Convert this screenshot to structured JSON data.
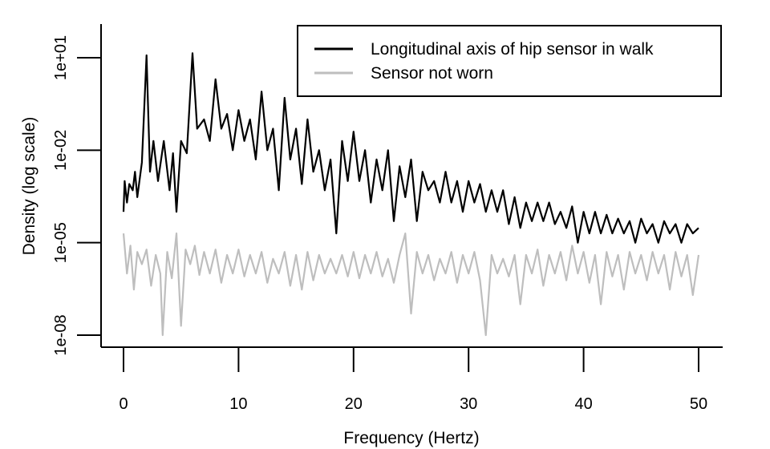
{
  "chart_data": {
    "type": "line",
    "title": "",
    "xlabel": "Frequency (Hertz)",
    "ylabel": "Density (log scale)",
    "xlim": [
      0,
      50
    ],
    "ylim_log10": [
      -8.4,
      2.1
    ],
    "y_scale": "log",
    "x_ticks": [
      0,
      10,
      20,
      30,
      40,
      50
    ],
    "y_ticks": [
      {
        "value": 1e-08,
        "label": "1e-08"
      },
      {
        "value": 1e-05,
        "label": "1e-05"
      },
      {
        "value": 0.01,
        "label": "1e-02"
      },
      {
        "value": 10,
        "label": "1e+01"
      }
    ],
    "grid": false,
    "legend_position": "top-right",
    "series": [
      {
        "name": "Longitudinal axis of hip sensor in walk",
        "color": "#000000",
        "points": [
          [
            0,
            0.0001
          ],
          [
            0.1,
            0.001
          ],
          [
            0.3,
            0.0002
          ],
          [
            0.5,
            0.0008
          ],
          [
            0.8,
            0.0005
          ],
          [
            1.0,
            0.002
          ],
          [
            1.2,
            0.0003
          ],
          [
            1.6,
            0.004
          ],
          [
            2.0,
            12
          ],
          [
            2.3,
            0.002
          ],
          [
            2.6,
            0.02
          ],
          [
            3.0,
            0.001
          ],
          [
            3.5,
            0.02
          ],
          [
            4.0,
            0.0005
          ],
          [
            4.3,
            0.008
          ],
          [
            4.6,
            0.0001
          ],
          [
            5.0,
            0.02
          ],
          [
            5.5,
            0.008
          ],
          [
            6.0,
            14
          ],
          [
            6.4,
            0.05
          ],
          [
            7.0,
            0.1
          ],
          [
            7.5,
            0.02
          ],
          [
            8.0,
            2
          ],
          [
            8.5,
            0.05
          ],
          [
            9.0,
            0.15
          ],
          [
            9.5,
            0.01
          ],
          [
            10.0,
            0.2
          ],
          [
            10.5,
            0.02
          ],
          [
            11.0,
            0.1
          ],
          [
            11.5,
            0.005
          ],
          [
            12.0,
            0.8
          ],
          [
            12.5,
            0.01
          ],
          [
            13.0,
            0.05
          ],
          [
            13.5,
            0.0005
          ],
          [
            14.0,
            0.5
          ],
          [
            14.5,
            0.005
          ],
          [
            15.0,
            0.05
          ],
          [
            15.5,
            0.0008
          ],
          [
            16.0,
            0.1
          ],
          [
            16.5,
            0.002
          ],
          [
            17.0,
            0.01
          ],
          [
            17.5,
            0.0005
          ],
          [
            18.0,
            0.005
          ],
          [
            18.5,
            2e-05
          ],
          [
            19.0,
            0.02
          ],
          [
            19.5,
            0.001
          ],
          [
            20.0,
            0.04
          ],
          [
            20.5,
            0.001
          ],
          [
            21.0,
            0.01
          ],
          [
            21.5,
            0.0002
          ],
          [
            22.0,
            0.005
          ],
          [
            22.5,
            0.0005
          ],
          [
            23.0,
            0.01
          ],
          [
            23.5,
            5e-05
          ],
          [
            24.0,
            0.003
          ],
          [
            24.5,
            0.0003
          ],
          [
            25.0,
            0.005
          ],
          [
            25.5,
            5e-05
          ],
          [
            26.0,
            0.002
          ],
          [
            26.5,
            0.0005
          ],
          [
            27.0,
            0.001
          ],
          [
            27.5,
            0.0002
          ],
          [
            28.0,
            0.002
          ],
          [
            28.5,
            0.0002
          ],
          [
            29.0,
            0.001
          ],
          [
            29.5,
            0.0001
          ],
          [
            30.0,
            0.001
          ],
          [
            30.5,
            0.0002
          ],
          [
            31.0,
            0.0008
          ],
          [
            31.5,
            0.0001
          ],
          [
            32.0,
            0.0005
          ],
          [
            32.5,
            0.0001
          ],
          [
            33.0,
            0.0005
          ],
          [
            33.5,
            4e-05
          ],
          [
            34.0,
            0.0003
          ],
          [
            34.5,
            3e-05
          ],
          [
            35.0,
            0.0002
          ],
          [
            35.5,
            5e-05
          ],
          [
            36.0,
            0.0002
          ],
          [
            36.5,
            5e-05
          ],
          [
            37.0,
            0.0002
          ],
          [
            37.5,
            4e-05
          ],
          [
            38.0,
            0.0001
          ],
          [
            38.5,
            3e-05
          ],
          [
            39.0,
            0.00015
          ],
          [
            39.5,
            1e-05
          ],
          [
            40.0,
            0.0001
          ],
          [
            40.5,
            2e-05
          ],
          [
            41.0,
            0.0001
          ],
          [
            41.5,
            2e-05
          ],
          [
            42.0,
            8e-05
          ],
          [
            42.5,
            2e-05
          ],
          [
            43.0,
            6e-05
          ],
          [
            43.5,
            2e-05
          ],
          [
            44.0,
            5e-05
          ],
          [
            44.5,
            1e-05
          ],
          [
            45.0,
            6e-05
          ],
          [
            45.5,
            2e-05
          ],
          [
            46.0,
            4e-05
          ],
          [
            46.5,
            1e-05
          ],
          [
            47.0,
            5e-05
          ],
          [
            47.5,
            2e-05
          ],
          [
            48.0,
            4e-05
          ],
          [
            48.5,
            1e-05
          ],
          [
            49.0,
            4e-05
          ],
          [
            49.5,
            2e-05
          ],
          [
            50.0,
            3e-05
          ]
        ]
      },
      {
        "name": "Sensor not worn",
        "color": "#bebebe",
        "points": [
          [
            0,
            2e-05
          ],
          [
            0.3,
            1e-06
          ],
          [
            0.6,
            8e-06
          ],
          [
            0.9,
            3e-07
          ],
          [
            1.2,
            5e-06
          ],
          [
            1.6,
            2e-06
          ],
          [
            2.0,
            6e-06
          ],
          [
            2.4,
            4e-07
          ],
          [
            2.8,
            4e-06
          ],
          [
            3.2,
            1e-06
          ],
          [
            3.4,
            1e-08
          ],
          [
            3.8,
            5e-06
          ],
          [
            4.2,
            7e-07
          ],
          [
            4.6,
            2e-05
          ],
          [
            5.0,
            2e-08
          ],
          [
            5.4,
            6e-06
          ],
          [
            5.8,
            2e-06
          ],
          [
            6.2,
            8e-06
          ],
          [
            6.6,
            9e-07
          ],
          [
            7.0,
            5e-06
          ],
          [
            7.5,
            1e-06
          ],
          [
            8.0,
            6e-06
          ],
          [
            8.5,
            5e-07
          ],
          [
            9.0,
            4e-06
          ],
          [
            9.5,
            1e-06
          ],
          [
            10.0,
            6e-06
          ],
          [
            10.5,
            8e-07
          ],
          [
            11.0,
            4e-06
          ],
          [
            11.5,
            1e-06
          ],
          [
            12.0,
            5e-06
          ],
          [
            12.5,
            5e-07
          ],
          [
            13.0,
            3e-06
          ],
          [
            13.5,
            1e-06
          ],
          [
            14.0,
            5e-06
          ],
          [
            14.5,
            4e-07
          ],
          [
            15.0,
            4e-06
          ],
          [
            15.5,
            3e-07
          ],
          [
            16.0,
            5e-06
          ],
          [
            16.5,
            6e-07
          ],
          [
            17.0,
            4e-06
          ],
          [
            17.5,
            1e-06
          ],
          [
            18.0,
            3e-06
          ],
          [
            18.5,
            1e-06
          ],
          [
            19.0,
            4e-06
          ],
          [
            19.5,
            8e-07
          ],
          [
            20.0,
            5e-06
          ],
          [
            20.5,
            7e-07
          ],
          [
            21.0,
            4e-06
          ],
          [
            21.5,
            1e-06
          ],
          [
            22.0,
            5e-06
          ],
          [
            22.5,
            8e-07
          ],
          [
            23.0,
            3e-06
          ],
          [
            23.5,
            5e-07
          ],
          [
            24.0,
            4e-06
          ],
          [
            24.5,
            2e-05
          ],
          [
            25.0,
            5e-08
          ],
          [
            25.5,
            5e-06
          ],
          [
            26.0,
            1e-06
          ],
          [
            26.5,
            4e-06
          ],
          [
            27.0,
            6e-07
          ],
          [
            27.5,
            3e-06
          ],
          [
            28.0,
            1e-06
          ],
          [
            28.5,
            5e-06
          ],
          [
            29.0,
            5e-07
          ],
          [
            29.5,
            4e-06
          ],
          [
            30.0,
            1e-06
          ],
          [
            30.5,
            5e-06
          ],
          [
            31.0,
            6e-07
          ],
          [
            31.5,
            1e-08
          ],
          [
            32.0,
            4e-06
          ],
          [
            32.5,
            1e-06
          ],
          [
            33.0,
            3e-06
          ],
          [
            33.5,
            8e-07
          ],
          [
            34.0,
            4e-06
          ],
          [
            34.5,
            1e-07
          ],
          [
            35.0,
            4e-06
          ],
          [
            35.5,
            1e-06
          ],
          [
            36.0,
            6e-06
          ],
          [
            36.5,
            4e-07
          ],
          [
            37.0,
            4e-06
          ],
          [
            37.5,
            1e-06
          ],
          [
            38.0,
            5e-06
          ],
          [
            38.5,
            6e-07
          ],
          [
            39.0,
            8e-06
          ],
          [
            39.5,
            1e-06
          ],
          [
            40.0,
            5e-06
          ],
          [
            40.5,
            5e-07
          ],
          [
            41.0,
            4e-06
          ],
          [
            41.5,
            1e-07
          ],
          [
            42.0,
            5e-06
          ],
          [
            42.5,
            8e-07
          ],
          [
            43.0,
            4e-06
          ],
          [
            43.5,
            3e-07
          ],
          [
            44.0,
            5e-06
          ],
          [
            44.5,
            1e-06
          ],
          [
            45.0,
            4e-06
          ],
          [
            45.5,
            6e-07
          ],
          [
            46.0,
            5e-06
          ],
          [
            46.5,
            1e-06
          ],
          [
            47.0,
            4e-06
          ],
          [
            47.5,
            3e-07
          ],
          [
            48.0,
            5e-06
          ],
          [
            48.5,
            8e-07
          ],
          [
            49.0,
            4e-06
          ],
          [
            49.5,
            2e-07
          ],
          [
            50.0,
            4e-06
          ]
        ]
      }
    ]
  }
}
